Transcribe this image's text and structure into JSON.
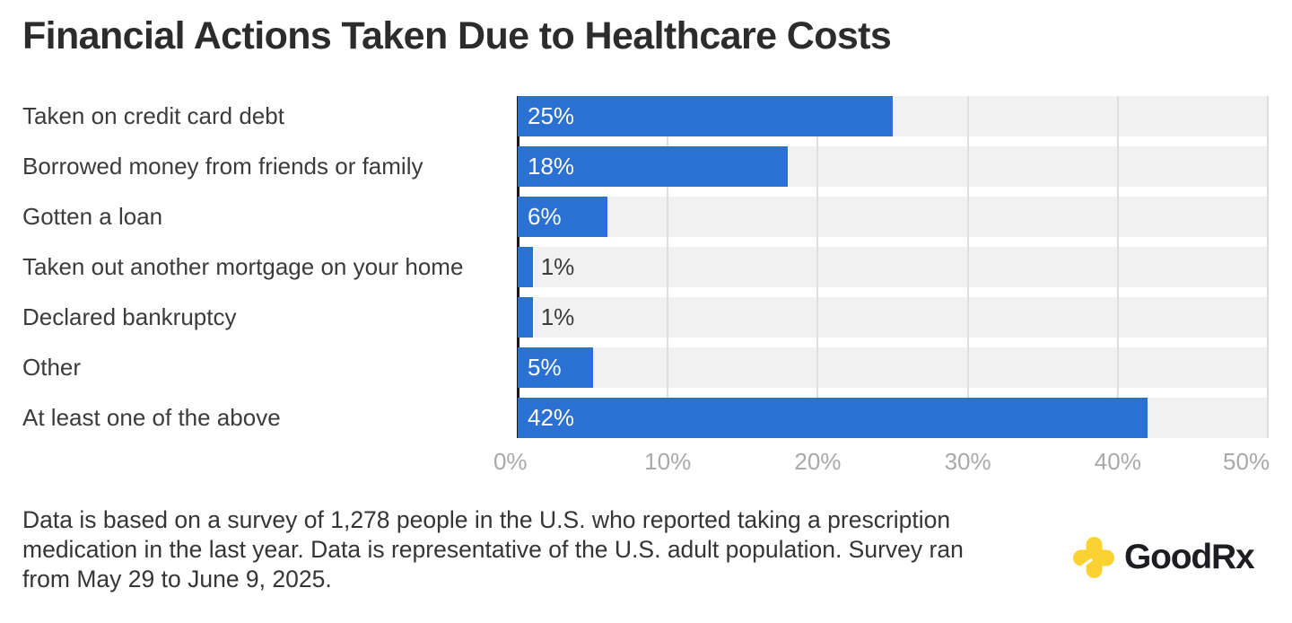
{
  "title": "Financial Actions Taken Due to Healthcare Costs",
  "chart_data": {
    "type": "bar",
    "orientation": "horizontal",
    "title": "Financial Actions Taken Due to Healthcare Costs",
    "categories": [
      "Taken on credit card debt",
      "Borrowed money from friends or family",
      "Gotten a loan",
      "Taken out another mortgage on your home",
      "Declared bankruptcy",
      "Other",
      "At least one of the above"
    ],
    "values": [
      25,
      18,
      6,
      1,
      1,
      5,
      42
    ],
    "value_labels": [
      "25%",
      "18%",
      "6%",
      "1%",
      "1%",
      "5%",
      "42%"
    ],
    "x_tick_values": [
      0,
      10,
      20,
      30,
      40,
      50
    ],
    "x_tick_labels": [
      "0%",
      "10%",
      "20%",
      "30%",
      "40%",
      "50%"
    ],
    "xlim": [
      0,
      50
    ],
    "grid": "vertical-gridlines-on",
    "legend": "none",
    "bar_color": "#2b70d3",
    "band_color": "#f1f1f2",
    "gridline_color": "#dedede",
    "axis_line_color": "#19191c",
    "tick_text_color": "#a9a9ab",
    "label_inside_color": "#ffffff",
    "label_outside_color": "#3b3b3d"
  },
  "footnote": {
    "lines": [
      "Data is based on a survey of 1,278 people in the U.S. who reported taking a prescription",
      "medication in the last year. Data is representative of the U.S. adult population. Survey ran",
      "from May 29 to June 9, 2025."
    ]
  },
  "logo": {
    "brand": "GoodRx",
    "text_good": "Good",
    "text_rx": "Rx",
    "cross_color": "#fcd232",
    "text_color": "#1e1d22"
  }
}
